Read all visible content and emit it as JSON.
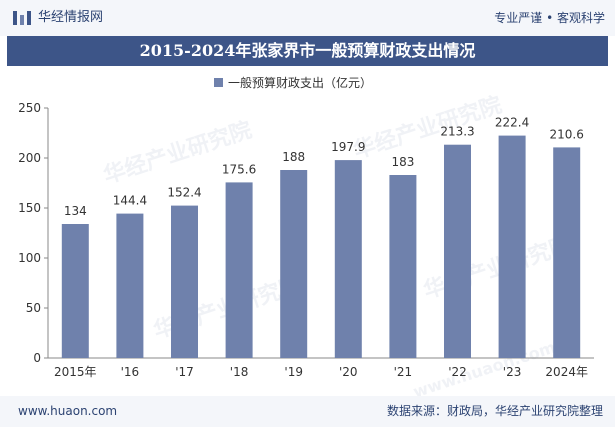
{
  "header": {
    "brand": "华经情报网",
    "slogan": "专业严谨 • 客观科学"
  },
  "title": "2015-2024年张家界市一般预算财政支出情况",
  "footer": {
    "site": "www.huaon.com",
    "source": "数据来源：财政局，华经产业研究院整理"
  },
  "watermark": {
    "text": "华经产业研究院",
    "url": "www.huaon.com"
  },
  "colors": {
    "bar": "#6f81ac",
    "title_bg": "#3d5588",
    "accent": "#2c4372"
  },
  "chart_data": {
    "type": "bar",
    "title": "2015-2024年张家界市一般预算财政支出情况",
    "categories": [
      "2015年",
      "'16",
      "'17",
      "'18",
      "'19",
      "'20",
      "'21",
      "'22",
      "'23",
      "2024年"
    ],
    "series": [
      {
        "name": "一般预算财政支出（亿元）",
        "values": [
          134,
          144.4,
          152.4,
          175.6,
          188,
          197.9,
          183,
          213.3,
          222.4,
          210.6
        ]
      }
    ],
    "ylim": [
      0,
      250
    ],
    "yticks": [
      0,
      50,
      100,
      150,
      200,
      250
    ],
    "grid": false,
    "legend": "top-center"
  }
}
